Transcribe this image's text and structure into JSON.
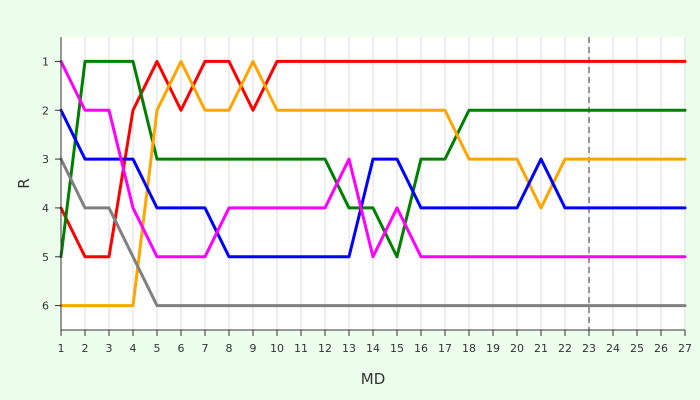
{
  "chart_data": {
    "type": "line",
    "title": "",
    "xlabel": "MD",
    "ylabel": "R",
    "x": [
      1,
      2,
      3,
      4,
      5,
      6,
      7,
      8,
      9,
      10,
      11,
      12,
      13,
      14,
      15,
      16,
      17,
      18,
      19,
      20,
      21,
      22,
      23,
      24,
      25,
      26,
      27
    ],
    "xlim": [
      1,
      27
    ],
    "ylim": [
      6.5,
      0.5
    ],
    "y_reversed": true,
    "x_ticks": [
      1,
      2,
      3,
      4,
      5,
      6,
      7,
      8,
      9,
      10,
      11,
      12,
      13,
      14,
      15,
      16,
      17,
      18,
      19,
      20,
      21,
      22,
      23,
      24,
      25,
      26,
      27
    ],
    "y_ticks": [
      1,
      2,
      3,
      4,
      5,
      6
    ],
    "grid": "vertical",
    "legend": "none",
    "reference_line": {
      "x": 23,
      "style": "dashed",
      "color": "#777777"
    },
    "series": [
      {
        "color": "#ff0000",
        "values": [
          4,
          5,
          5,
          2,
          1,
          2,
          1,
          1,
          2,
          1,
          1,
          1,
          1,
          1,
          1,
          1,
          1,
          1,
          1,
          1,
          1,
          1,
          1,
          1,
          1,
          1,
          1
        ]
      },
      {
        "color": "#008000",
        "values": [
          5,
          1,
          1,
          1,
          3,
          3,
          3,
          3,
          3,
          3,
          3,
          3,
          4,
          4,
          5,
          3,
          3,
          2,
          2,
          2,
          2,
          2,
          2,
          2,
          2,
          2,
          2
        ]
      },
      {
        "color": "#ffa500",
        "values": [
          6,
          6,
          6,
          6,
          2,
          1,
          2,
          2,
          1,
          2,
          2,
          2,
          2,
          2,
          2,
          2,
          2,
          3,
          3,
          3,
          4,
          3,
          3,
          3,
          3,
          3,
          3
        ]
      },
      {
        "color": "#0000ff",
        "values": [
          2,
          3,
          3,
          3,
          4,
          4,
          4,
          5,
          5,
          5,
          5,
          5,
          5,
          3,
          3,
          4,
          4,
          4,
          4,
          4,
          3,
          4,
          4,
          4,
          4,
          4,
          4
        ]
      },
      {
        "color": "#ff00ff",
        "values": [
          1,
          2,
          2,
          4,
          5,
          5,
          5,
          4,
          4,
          4,
          4,
          4,
          3,
          5,
          4,
          5,
          5,
          5,
          5,
          5,
          5,
          5,
          5,
          5,
          5,
          5,
          5
        ]
      },
      {
        "color": "#808080",
        "values": [
          3,
          4,
          4,
          5,
          6,
          6,
          6,
          6,
          6,
          6,
          6,
          6,
          6,
          6,
          6,
          6,
          6,
          6,
          6,
          6,
          6,
          6,
          6,
          6,
          6,
          6,
          6
        ]
      }
    ]
  }
}
